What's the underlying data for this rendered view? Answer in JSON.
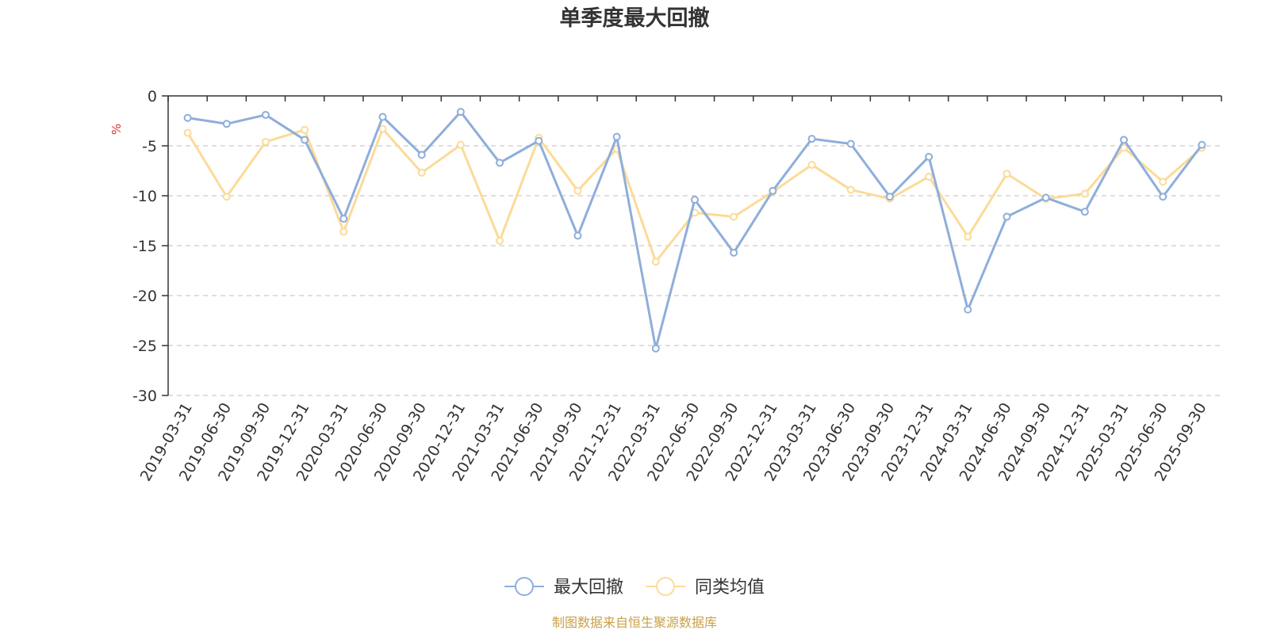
{
  "chart_data": {
    "type": "line",
    "title": "单季度最大回撤",
    "ylabel": "%",
    "ylim": [
      -30,
      0
    ],
    "yticks": [
      0,
      -5,
      -10,
      -15,
      -20,
      -25,
      -30
    ],
    "grid": true,
    "legend_position": "bottom-center",
    "categories": [
      "2019-03-31",
      "2019-06-30",
      "2019-09-30",
      "2019-12-31",
      "2020-03-31",
      "2020-06-30",
      "2020-09-30",
      "2020-12-31",
      "2021-03-31",
      "2021-06-30",
      "2021-09-30",
      "2021-12-31",
      "2022-03-31",
      "2022-06-30",
      "2022-09-30",
      "2022-12-31",
      "2023-03-31",
      "2023-06-30",
      "2023-09-30",
      "2023-12-31",
      "2024-03-31",
      "2024-06-30",
      "2024-09-30",
      "2024-12-31",
      "2025-03-31",
      "2025-06-30",
      "2025-09-30"
    ],
    "series": [
      {
        "name": "最大回撤",
        "color": "#8eaedb",
        "values": [
          -2.2,
          -2.8,
          -1.9,
          -4.4,
          -12.3,
          -2.1,
          -5.9,
          -1.6,
          -6.7,
          -4.5,
          -14.0,
          -4.1,
          -25.3,
          -10.4,
          -15.7,
          -9.5,
          -4.3,
          -4.8,
          -10.1,
          -6.1,
          -21.4,
          -12.1,
          -10.2,
          -11.6,
          -4.4,
          -10.1,
          -4.9
        ]
      },
      {
        "name": "同类均值",
        "color": "#fbdb98",
        "values": [
          -3.7,
          -10.1,
          -4.6,
          -3.4,
          -13.6,
          -3.3,
          -7.7,
          -4.9,
          -14.5,
          -4.2,
          -9.5,
          -5.3,
          -16.6,
          -11.7,
          -12.1,
          -9.6,
          -6.9,
          -9.4,
          -10.3,
          -8.1,
          -14.1,
          -7.8,
          -10.3,
          -9.8,
          -5.2,
          -8.6,
          -5.2
        ]
      }
    ]
  },
  "source_note": {
    "text": "制图数据来自恒生聚源数据库",
    "color": "#c9a04a"
  },
  "unit_color": "#e03030"
}
